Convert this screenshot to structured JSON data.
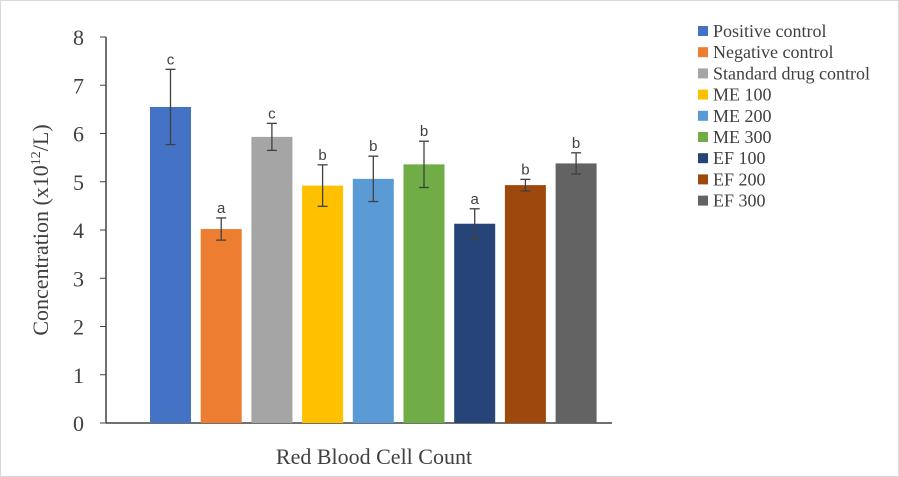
{
  "chart_data": {
    "type": "bar",
    "xlabel": "Red Blood Cell Count",
    "ylabel_prefix": "Concentration (x10",
    "ylabel_sup": "12",
    "ylabel_suffix": "/L)",
    "ylim": [
      0,
      8
    ],
    "yticks": [
      "0",
      "1",
      "2",
      "3",
      "4",
      "5",
      "6",
      "7",
      "8"
    ],
    "grid": false,
    "legend_position": "right",
    "series": [
      {
        "name": "Positive control",
        "value": 6.55,
        "error": 0.78,
        "label": "c",
        "color": "#4472c4"
      },
      {
        "name": "Negative control",
        "value": 4.02,
        "error": 0.23,
        "label": "a",
        "color": "#ed7d31"
      },
      {
        "name": "Standard drug control",
        "value": 5.93,
        "error": 0.28,
        "label": "c",
        "color": "#a5a5a5"
      },
      {
        "name": "ME 100",
        "value": 4.92,
        "error": 0.43,
        "label": "b",
        "color": "#ffc000"
      },
      {
        "name": "ME 200",
        "value": 5.06,
        "error": 0.47,
        "label": "b",
        "color": "#5b9bd5"
      },
      {
        "name": "ME 300",
        "value": 5.36,
        "error": 0.48,
        "label": "b",
        "color": "#70ad47"
      },
      {
        "name": "EF 100",
        "value": 4.13,
        "error": 0.31,
        "label": "a",
        "color": "#264478"
      },
      {
        "name": "EF 200",
        "value": 4.93,
        "error": 0.12,
        "label": "b",
        "color": "#9e480e"
      },
      {
        "name": "EF 300",
        "value": 5.38,
        "error": 0.22,
        "label": "b",
        "color": "#636363"
      }
    ]
  }
}
